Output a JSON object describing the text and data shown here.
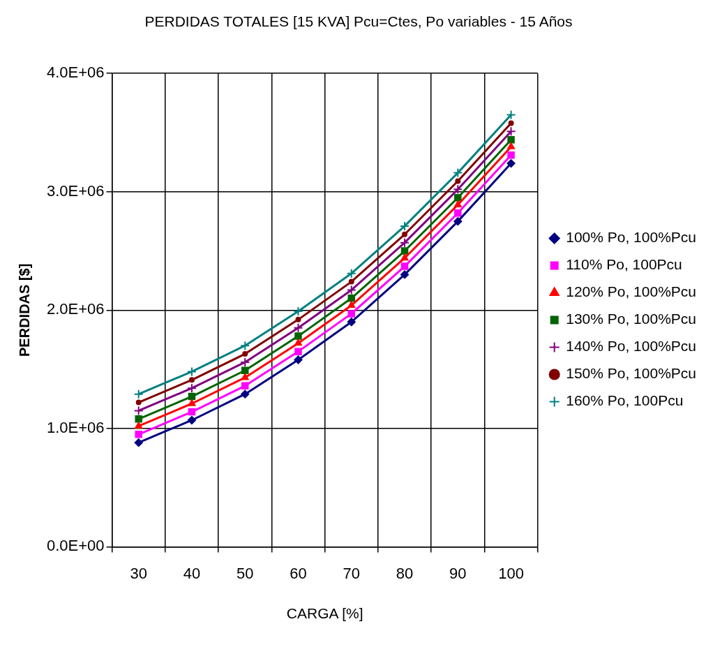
{
  "chart_data": {
    "type": "line",
    "title": "PERDIDAS TOTALES [15 KVA] Pcu=Ctes, Po variables - 15 Años",
    "xlabel": "CARGA [%]",
    "ylabel": "PERDIDAS [$]",
    "categories": [
      "30",
      "40",
      "50",
      "60",
      "70",
      "80",
      "90",
      "100"
    ],
    "series": [
      {
        "name": "100% Po, 100%Pcu",
        "color": "#000080",
        "marker": "diamond",
        "values": [
          880000,
          1070000,
          1290000,
          1580000,
          1900000,
          2300000,
          2750000,
          3240000
        ]
      },
      {
        "name": "110% Po, 100Pcu",
        "color": "#ff00ff",
        "marker": "square",
        "values": [
          950000,
          1140000,
          1360000,
          1650000,
          1970000,
          2370000,
          2820000,
          3310000
        ]
      },
      {
        "name": "120% Po, 100%Pcu",
        "color": "#ff0000",
        "marker": "triangle",
        "values": [
          1020000,
          1210000,
          1430000,
          1720000,
          2040000,
          2440000,
          2890000,
          3380000
        ]
      },
      {
        "name": "130% Po, 100%Pcu",
        "color": "#006400",
        "marker": "square",
        "values": [
          1080000,
          1270000,
          1490000,
          1780000,
          2100000,
          2500000,
          2950000,
          3440000
        ]
      },
      {
        "name": "140% Po, 100%Pcu",
        "color": "#800080",
        "marker": "cross",
        "values": [
          1150000,
          1340000,
          1560000,
          1850000,
          2170000,
          2570000,
          3020000,
          3510000
        ]
      },
      {
        "name": "150% Po, 100%Pcu",
        "color": "#800000",
        "marker": "circle",
        "values": [
          1220000,
          1410000,
          1630000,
          1920000,
          2240000,
          2640000,
          3090000,
          3580000
        ]
      },
      {
        "name": "160% Po, 100Pcu",
        "color": "#008080",
        "marker": "cross",
        "values": [
          1290000,
          1480000,
          1700000,
          1990000,
          2310000,
          2710000,
          3160000,
          3650000
        ]
      }
    ],
    "ylim": [
      0,
      4000000
    ],
    "yticks": [
      {
        "value": 0,
        "label": "0.0E+00"
      },
      {
        "value": 1000000,
        "label": "1.0E+06"
      },
      {
        "value": 2000000,
        "label": "2.0E+06"
      },
      {
        "value": 3000000,
        "label": "3.0E+06"
      },
      {
        "value": 4000000,
        "label": "4.0E+06"
      }
    ],
    "grid": true,
    "legend": "right",
    "line_style": "solid"
  }
}
